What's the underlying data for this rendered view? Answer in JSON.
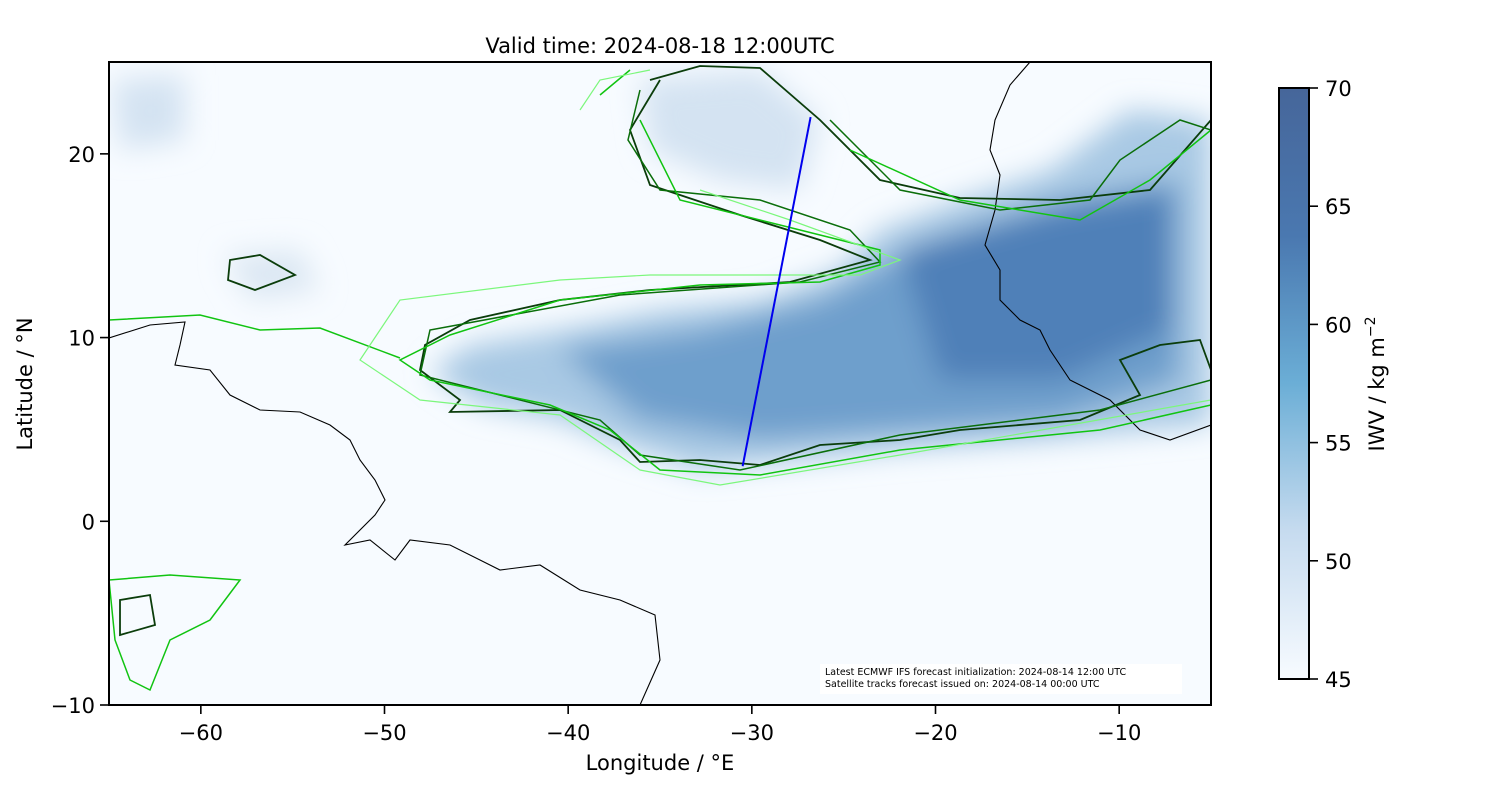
{
  "chart_data": {
    "type": "map",
    "title": "Valid time: 2024-08-18 12:00UTC",
    "x_label": "Longitude / °E",
    "y_label": "Latitude / °N",
    "xlim": [
      -65,
      -5
    ],
    "ylim": [
      -10,
      25
    ],
    "xticks": [
      {
        "value": -60,
        "label": "−60"
      },
      {
        "value": -50,
        "label": "−50"
      },
      {
        "value": -40,
        "label": "−40"
      },
      {
        "value": -30,
        "label": "−30"
      },
      {
        "value": -20,
        "label": "−20"
      },
      {
        "value": -10,
        "label": "−10"
      }
    ],
    "yticks": [
      {
        "value": -10,
        "label": "−10"
      },
      0,
      10,
      20
    ],
    "track": {
      "color": "#0000ee",
      "lon": [
        -30.5,
        -26.8
      ],
      "lat": [
        3.0,
        22.0
      ]
    },
    "colorbar": {
      "label": "IWV / kg m",
      "label_superscript": "−2",
      "lim": [
        45,
        70
      ],
      "ticks": [
        45,
        50,
        55,
        60,
        65,
        70
      ],
      "colors": [
        "#f7fbff",
        "#c6dbef",
        "#6baed6",
        "#4a78b0",
        "#46669a"
      ]
    },
    "annotation": [
      "Latest ECMWF IFS forecast initialization: 2024-08-14 12:00 UTC",
      "Satellite tracks forecast issued on: 2024-08-14 00:00 UTC"
    ]
  }
}
